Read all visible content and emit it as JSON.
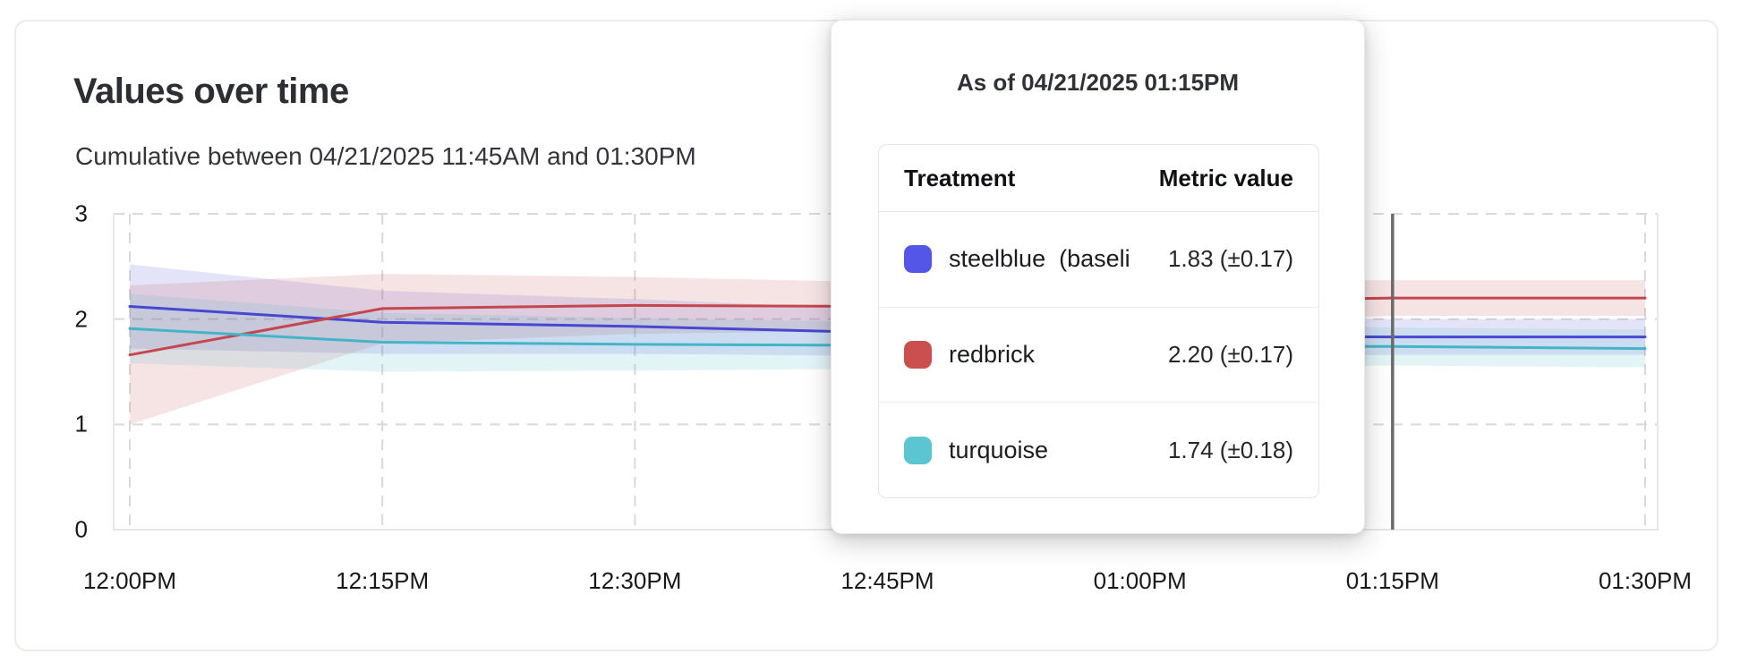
{
  "card": {
    "title": "Values over time",
    "subtitle": "Cumulative between 04/21/2025 11:45AM and 01:30PM"
  },
  "tooltip": {
    "header": "As of 04/21/2025 01:15PM",
    "columns": {
      "treatment": "Treatment",
      "metric": "Metric value"
    },
    "rows": [
      {
        "label": "steelblue  (baseli",
        "value": "1.83 (±0.17)",
        "swatch_color": "#5456e8"
      },
      {
        "label": "redbrick",
        "value": "2.20 (±0.17)",
        "swatch_color": "#cb4f4f"
      },
      {
        "label": "turquoise",
        "value": "1.74 (±0.18)",
        "swatch_color": "#5bc5d2"
      }
    ]
  },
  "chart_data": {
    "type": "line",
    "title": "Values over time",
    "subtitle": "Cumulative between 04/21/2025 11:45AM and 01:30PM",
    "x_tick_labels": [
      "12:00PM",
      "12:15PM",
      "12:30PM",
      "12:45PM",
      "01:00PM",
      "01:15PM",
      "01:30PM"
    ],
    "y_tick_labels": [
      "0",
      "1",
      "2",
      "3"
    ],
    "y_ticks": [
      0,
      1,
      2,
      3
    ],
    "ylim": [
      0,
      3
    ],
    "grid": "dashed",
    "legend": "none",
    "crosshair_at": "01:15PM",
    "crosshair_color": "#6a6a6a",
    "grid_color": "#d9d9d9",
    "axis_border_color": "#e6e7ea",
    "band_opacity": 0.15,
    "series": [
      {
        "name": "steelblue (baseline)",
        "color": "#4747d1",
        "values": [
          2.12,
          1.97,
          1.93,
          1.87,
          1.84,
          1.83,
          1.83
        ],
        "ci": [
          0.4,
          0.3,
          0.26,
          0.22,
          0.19,
          0.17,
          0.17
        ]
      },
      {
        "name": "redbrick",
        "color": "#c4474e",
        "values": [
          1.66,
          2.1,
          2.13,
          2.12,
          2.16,
          2.2,
          2.2
        ],
        "ci": [
          0.66,
          0.33,
          0.27,
          0.23,
          0.2,
          0.17,
          0.17
        ]
      },
      {
        "name": "turquoise",
        "color": "#44b5c8",
        "values": [
          1.91,
          1.78,
          1.76,
          1.75,
          1.74,
          1.74,
          1.72
        ],
        "ci": [
          0.33,
          0.28,
          0.25,
          0.22,
          0.2,
          0.18,
          0.18
        ]
      }
    ]
  }
}
